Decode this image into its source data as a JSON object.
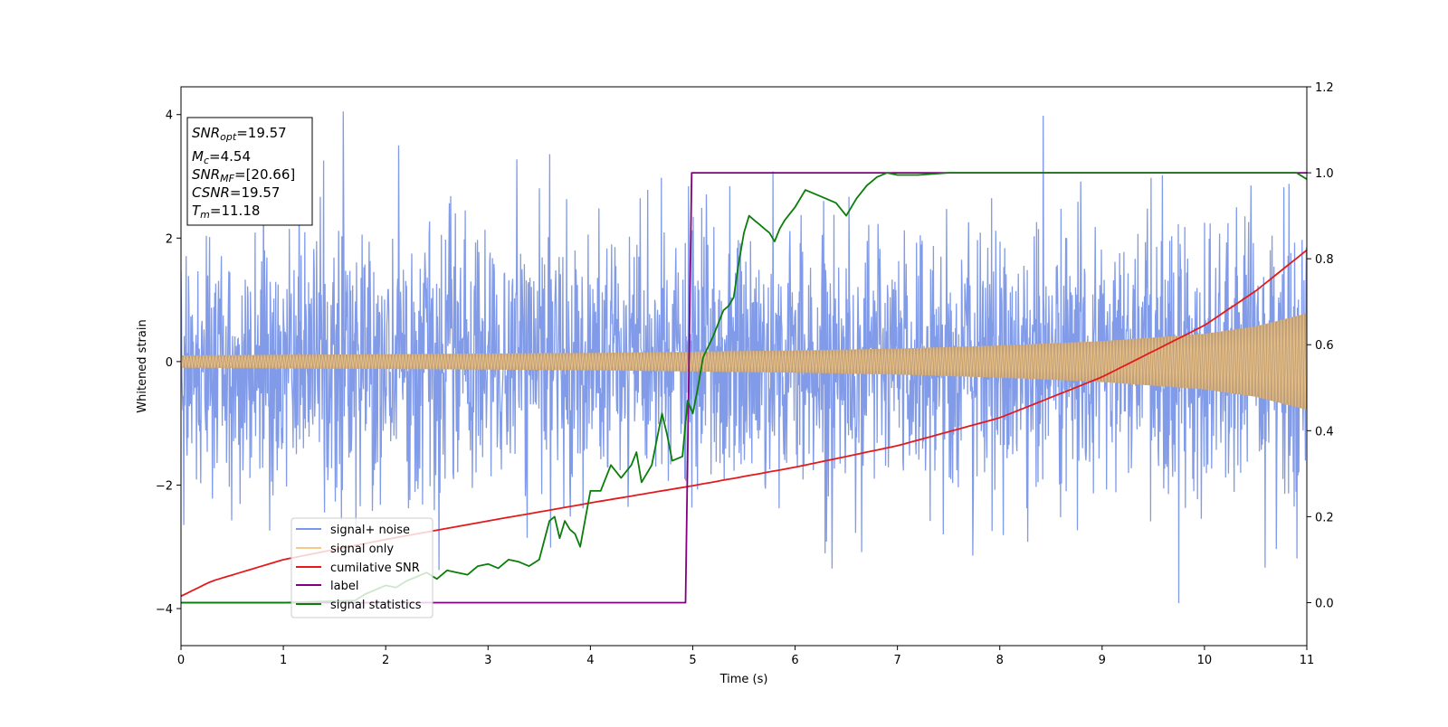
{
  "chart_data": {
    "type": "line",
    "xlabel": "Time (s)",
    "ylabel": "Whitened strain",
    "xlim": [
      0,
      11
    ],
    "ylim_left": [
      -4.6,
      4.45
    ],
    "ylim_right": [
      -0.1,
      1.2
    ],
    "x_ticks": [
      0,
      1,
      2,
      3,
      4,
      5,
      6,
      7,
      8,
      9,
      10,
      11
    ],
    "y_ticks_left": [
      -4,
      -2,
      0,
      2,
      4
    ],
    "y_ticks_right": [
      "0.0",
      "0.2",
      "0.4",
      "0.6",
      "0.8",
      "1.0",
      "1.2"
    ],
    "legend_position": "lower-left",
    "legend": [
      {
        "label": "signal+ noise",
        "color": "#7a96e8"
      },
      {
        "label": "signal only",
        "color": "#f5c98a"
      },
      {
        "label": "cumilative SNR",
        "color": "#e31a1c"
      },
      {
        "label": "label",
        "color": "#800080"
      },
      {
        "label": "signal statistics",
        "color": "#0a7d0a"
      }
    ],
    "stats_box": {
      "snr_opt_name": "SNR",
      "snr_opt_sub": "opt",
      "snr_opt_value": "=19.57",
      "mc_name": "M",
      "mc_sub": "c",
      "mc_value": "=4.54",
      "snr_mf_name": "SNR",
      "snr_mf_sub": "MF",
      "snr_mf_value": "=[20.66]",
      "csnr_name": "CSNR",
      "csnr_value": "=19.57",
      "tm_name": "T",
      "tm_sub": "m",
      "tm_value": "=11.18"
    },
    "series": [
      {
        "name": "signal+ noise",
        "axis": "left",
        "color": "#7a96e8",
        "style": "noise",
        "duration": 11,
        "sigma": 1.0,
        "peak_max": 4.05,
        "peak_min": -4.2
      },
      {
        "name": "signal only",
        "axis": "left",
        "color": "#f5c98a",
        "style": "envelope",
        "x": [
          0,
          1,
          2,
          3,
          4,
          5,
          6,
          7,
          8,
          9,
          10,
          10.5,
          11
        ],
        "amplitude": [
          0.1,
          0.11,
          0.12,
          0.13,
          0.14,
          0.16,
          0.18,
          0.21,
          0.26,
          0.33,
          0.45,
          0.57,
          0.78
        ]
      },
      {
        "name": "cumilative SNR",
        "axis": "right",
        "color": "#e31a1c",
        "x": [
          0,
          0.3,
          1,
          2,
          3,
          4,
          5,
          6,
          7,
          8,
          9,
          10,
          10.5,
          11
        ],
        "y": [
          0.015,
          0.05,
          0.1,
          0.147,
          0.19,
          0.232,
          0.272,
          0.315,
          0.365,
          0.43,
          0.525,
          0.645,
          0.725,
          0.82
        ]
      },
      {
        "name": "label",
        "axis": "right",
        "color": "#800080",
        "x": [
          0,
          4.93,
          4.99,
          11
        ],
        "y": [
          0.0,
          0.0,
          1.0,
          1.0
        ]
      },
      {
        "name": "signal statistics",
        "axis": "right",
        "color": "#0a7d0a",
        "x": [
          0,
          1,
          1.7,
          1.8,
          2,
          2.1,
          2.2,
          2.4,
          2.5,
          2.6,
          2.7,
          2.8,
          2.9,
          3,
          3.1,
          3.2,
          3.3,
          3.4,
          3.5,
          3.6,
          3.65,
          3.7,
          3.75,
          3.8,
          3.85,
          3.9,
          4.0,
          4.1,
          4.2,
          4.3,
          4.4,
          4.45,
          4.5,
          4.55,
          4.6,
          4.7,
          4.75,
          4.8,
          4.9,
          4.95,
          5.0,
          5.05,
          5.1,
          5.2,
          5.3,
          5.35,
          5.4,
          5.45,
          5.5,
          5.55,
          5.6,
          5.65,
          5.7,
          5.75,
          5.8,
          5.85,
          5.9,
          6.0,
          6.1,
          6.2,
          6.3,
          6.4,
          6.5,
          6.6,
          6.7,
          6.8,
          6.9,
          7.0,
          7.2,
          7.5,
          7.8,
          8.0,
          9.0,
          10.0,
          10.9,
          11.0
        ],
        "y": [
          0.0,
          0.0,
          0.005,
          0.02,
          0.04,
          0.035,
          0.05,
          0.07,
          0.055,
          0.075,
          0.07,
          0.065,
          0.085,
          0.09,
          0.08,
          0.1,
          0.095,
          0.085,
          0.1,
          0.19,
          0.2,
          0.15,
          0.19,
          0.17,
          0.16,
          0.13,
          0.26,
          0.26,
          0.32,
          0.29,
          0.32,
          0.35,
          0.28,
          0.3,
          0.32,
          0.44,
          0.39,
          0.33,
          0.34,
          0.47,
          0.44,
          0.5,
          0.57,
          0.62,
          0.68,
          0.69,
          0.71,
          0.79,
          0.86,
          0.9,
          0.89,
          0.88,
          0.87,
          0.86,
          0.84,
          0.87,
          0.89,
          0.92,
          0.96,
          0.95,
          0.94,
          0.93,
          0.9,
          0.94,
          0.97,
          0.99,
          1.0,
          0.995,
          0.995,
          1.0,
          1.0,
          1.0,
          1.0,
          1.0,
          1.0,
          0.985
        ]
      }
    ]
  }
}
